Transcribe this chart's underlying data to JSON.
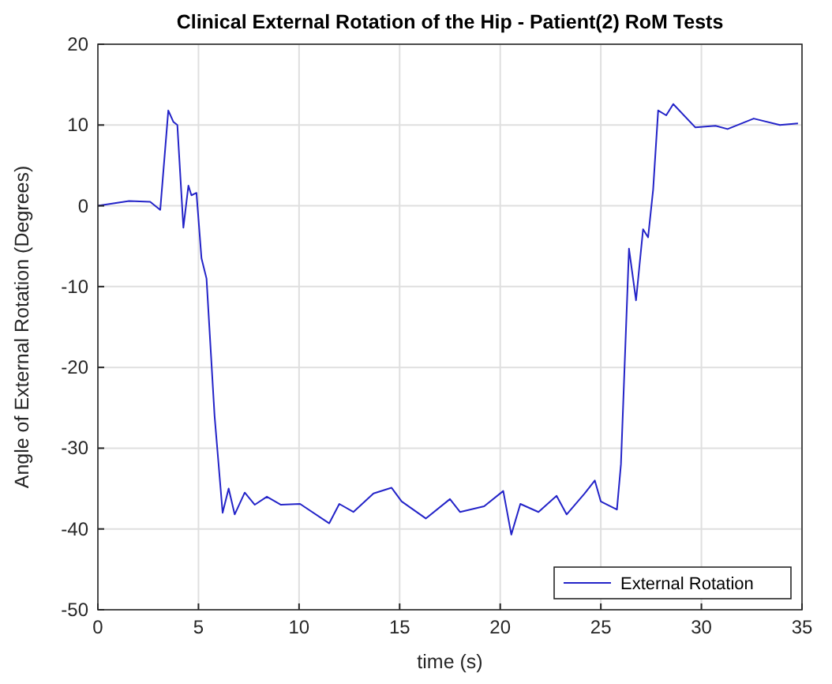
{
  "chart_data": {
    "type": "line",
    "title": "Clinical External Rotation of the Hip - Patient(2) RoM Tests",
    "xlabel": "time (s)",
    "ylabel": "Angle of External Rotation (Degrees)",
    "xlim": [
      0,
      35
    ],
    "ylim": [
      -50,
      20
    ],
    "xticks": [
      0,
      5,
      10,
      15,
      20,
      25,
      30,
      35
    ],
    "yticks": [
      -50,
      -40,
      -30,
      -20,
      -10,
      0,
      10,
      20
    ],
    "grid": true,
    "legend": "bottom right",
    "series": [
      {
        "name": "External Rotation",
        "color": "#2323c8",
        "x": [
          0,
          1.55,
          2.6,
          3.1,
          3.5,
          3.75,
          3.95,
          4.25,
          4.5,
          4.65,
          4.9,
          5.15,
          5.4,
          5.8,
          6.2,
          6.5,
          6.8,
          7.3,
          7.8,
          8.4,
          9.1,
          10.05,
          11.5,
          12.0,
          12.7,
          13.7,
          14.6,
          15.1,
          16.3,
          17.5,
          18.0,
          19.2,
          20.15,
          20.55,
          21.0,
          21.9,
          22.8,
          23.3,
          24.2,
          24.7,
          25,
          25.8,
          26.0,
          26.4,
          26.75,
          27.1,
          27.35,
          27.6,
          27.85,
          28.25,
          28.6,
          29.7,
          30.7,
          31.3,
          32.6,
          33.9,
          34.8
        ],
        "values": [
          0,
          0.6,
          0.5,
          -0.5,
          11.8,
          10.4,
          10,
          -2.7,
          2.5,
          1.3,
          1.6,
          -6.5,
          -9,
          -26,
          -38,
          -35,
          -38.2,
          -35.5,
          -37,
          -36,
          -37,
          -36.9,
          -39.3,
          -36.9,
          -37.9,
          -35.6,
          -34.9,
          -36.6,
          -38.7,
          -36.3,
          -37.9,
          -37.2,
          -35.3,
          -40.7,
          -36.9,
          -37.9,
          -35.9,
          -38.2,
          -35.6,
          -34,
          -36.6,
          -37.6,
          -32,
          -5.3,
          -11.7,
          -2.9,
          -3.9,
          2,
          11.8,
          11.2,
          12.6,
          9.7,
          9.9,
          9.5,
          10.8,
          10,
          10.2
        ]
      }
    ]
  }
}
